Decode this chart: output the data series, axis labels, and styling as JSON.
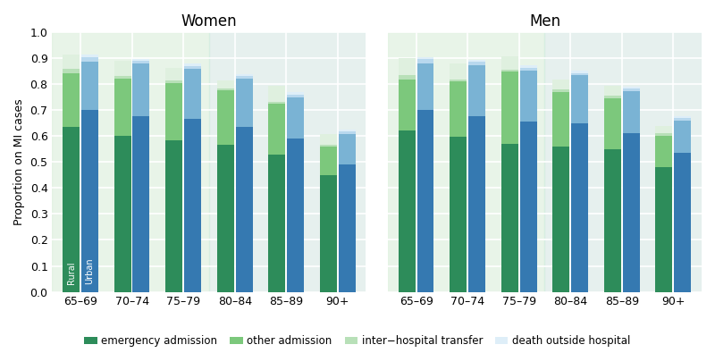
{
  "age_groups": [
    "65–69",
    "70–74",
    "75–79",
    "80–84",
    "85–89",
    "90+"
  ],
  "women": {
    "rural": {
      "emergency_admission": [
        0.635,
        0.6,
        0.585,
        0.565,
        0.53,
        0.45
      ],
      "other_admission": [
        0.205,
        0.22,
        0.22,
        0.21,
        0.195,
        0.11
      ],
      "inter_hospital": [
        0.02,
        0.01,
        0.008,
        0.008,
        0.008,
        0.008
      ],
      "death_outside": [
        0.055,
        0.058,
        0.05,
        0.03,
        0.06,
        0.04
      ]
    },
    "urban": {
      "emergency_admission": [
        0.7,
        0.678,
        0.665,
        0.635,
        0.59,
        0.49
      ],
      "other_admission": [
        0.185,
        0.2,
        0.195,
        0.185,
        0.16,
        0.118
      ],
      "inter_hospital": [
        0.02,
        0.012,
        0.01,
        0.01,
        0.01,
        0.01
      ],
      "death_outside": [
        0.008,
        0.008,
        0.008,
        0.008,
        0.008,
        0.008
      ]
    }
  },
  "men": {
    "rural": {
      "emergency_admission": [
        0.62,
        0.597,
        0.57,
        0.56,
        0.548,
        0.48
      ],
      "other_admission": [
        0.198,
        0.212,
        0.278,
        0.21,
        0.198,
        0.122
      ],
      "inter_hospital": [
        0.018,
        0.01,
        0.008,
        0.008,
        0.008,
        0.008
      ],
      "death_outside": [
        0.065,
        0.06,
        0.052,
        0.04,
        0.04,
        0.03
      ]
    },
    "urban": {
      "emergency_admission": [
        0.7,
        0.678,
        0.655,
        0.648,
        0.61,
        0.535
      ],
      "other_admission": [
        0.178,
        0.195,
        0.198,
        0.185,
        0.162,
        0.125
      ],
      "inter_hospital": [
        0.018,
        0.012,
        0.01,
        0.01,
        0.01,
        0.01
      ],
      "death_outside": [
        0.008,
        0.008,
        0.008,
        0.008,
        0.008,
        0.008
      ]
    }
  },
  "colors": {
    "rural_emergency": "#2d8c5a",
    "rural_other": "#7cc87c",
    "rural_inter": "#b8e0b8",
    "rural_death": "#dff0df",
    "urban_emergency": "#3579b1",
    "urban_other": "#7ab3d4",
    "urban_inter": "#b8d8ee",
    "urban_death": "#deeef8"
  },
  "bg_color": "#f7f7f7",
  "ylim": [
    0.0,
    1.0
  ],
  "yticks": [
    0.0,
    0.1,
    0.2,
    0.3,
    0.4,
    0.5,
    0.6,
    0.7,
    0.8,
    0.9,
    1.0
  ],
  "ylabel": "Proportion on MI cases",
  "title_women": "Women",
  "title_men": "Men",
  "legend_labels": [
    "emergency admission",
    "other admission",
    "inter−hospital transfer",
    "death outside hospital"
  ],
  "legend_colors": [
    "#2d8c5a",
    "#7cc87c",
    "#b8e0b8",
    "#deeef8"
  ],
  "bar_width": 0.33,
  "bar_gap": 0.03
}
